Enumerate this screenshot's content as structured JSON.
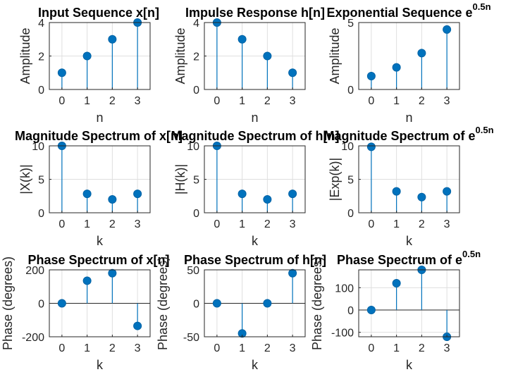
{
  "chart_data": [
    {
      "type": "stem",
      "title": "Input Sequence x[n]",
      "xlabel": "n",
      "ylabel": "Amplitude",
      "x": [
        0,
        1,
        2,
        3
      ],
      "y": [
        1,
        2,
        3,
        4
      ],
      "xlim": [
        -0.5,
        3.5
      ],
      "ylim": [
        0,
        4
      ],
      "yticks": [
        0,
        2,
        4
      ],
      "ytick_labels": [
        "0",
        "2",
        "4"
      ],
      "xtick_labels": [
        "0",
        "1",
        "2",
        "3"
      ],
      "grid": true
    },
    {
      "type": "stem",
      "title": "Impulse Response h[n]",
      "xlabel": "n",
      "ylabel": "Amplitude",
      "x": [
        0,
        1,
        2,
        3
      ],
      "y": [
        4,
        3,
        2,
        1
      ],
      "xlim": [
        -0.5,
        3.5
      ],
      "ylim": [
        0,
        4
      ],
      "yticks": [
        0,
        2,
        4
      ],
      "ytick_labels": [
        "0",
        "2",
        "4"
      ],
      "xtick_labels": [
        "0",
        "1",
        "2",
        "3"
      ],
      "grid": true
    },
    {
      "type": "stem",
      "title": "Exponential Sequence e",
      "title_sup": "0.5n",
      "xlabel": "n",
      "ylabel": "Amplitude",
      "x": [
        0,
        1,
        2,
        3
      ],
      "y": [
        1,
        1.65,
        2.72,
        4.48
      ],
      "xlim": [
        -0.5,
        3.5
      ],
      "ylim": [
        0,
        5
      ],
      "yticks": [
        0,
        5
      ],
      "ytick_labels": [
        "0",
        "5"
      ],
      "xtick_labels": [
        "0",
        "1",
        "2",
        "3"
      ],
      "grid": true
    },
    {
      "type": "stem",
      "title": "Magnitude Spectrum of x[n]",
      "xlabel": "k",
      "ylabel": "|X(k)|",
      "x": [
        0,
        1,
        2,
        3
      ],
      "y": [
        10,
        2.83,
        2,
        2.83
      ],
      "xlim": [
        -0.5,
        3.5
      ],
      "ylim": [
        0,
        10
      ],
      "yticks": [
        0,
        5,
        10
      ],
      "ytick_labels": [
        "0",
        "5",
        "10"
      ],
      "xtick_labels": [
        "0",
        "1",
        "2",
        "3"
      ],
      "grid": true
    },
    {
      "type": "stem",
      "title": "Magnitude Spectrum of h[n]",
      "xlabel": "k",
      "ylabel": "|H(k)|",
      "x": [
        0,
        1,
        2,
        3
      ],
      "y": [
        10,
        2.83,
        2,
        2.83
      ],
      "xlim": [
        -0.5,
        3.5
      ],
      "ylim": [
        0,
        10
      ],
      "yticks": [
        0,
        5,
        10
      ],
      "ytick_labels": [
        "0",
        "5",
        "10"
      ],
      "xtick_labels": [
        "0",
        "1",
        "2",
        "3"
      ],
      "grid": true
    },
    {
      "type": "stem",
      "title": "Magnitude Spectrum of e",
      "title_sup": "0.5n",
      "xlabel": "k",
      "ylabel": "|Exp(k)|",
      "x": [
        0,
        1,
        2,
        3
      ],
      "y": [
        9.85,
        3.2,
        2.34,
        3.2
      ],
      "xlim": [
        -0.5,
        3.5
      ],
      "ylim": [
        0,
        10
      ],
      "yticks": [
        0,
        5,
        10
      ],
      "ytick_labels": [
        "0",
        "5",
        "10"
      ],
      "xtick_labels": [
        "0",
        "1",
        "2",
        "3"
      ],
      "grid": true
    },
    {
      "type": "stem",
      "title": "Phase Spectrum of x[n]",
      "xlabel": "k",
      "ylabel": "Phase (degrees)",
      "x": [
        0,
        1,
        2,
        3
      ],
      "y": [
        0,
        135,
        180,
        -135
      ],
      "xlim": [
        -0.5,
        3.5
      ],
      "ylim": [
        -200,
        200
      ],
      "yticks": [
        -200,
        0,
        200
      ],
      "ytick_labels": [
        "-200",
        "0",
        "200"
      ],
      "xtick_labels": [
        "0",
        "1",
        "2",
        "3"
      ],
      "grid": true
    },
    {
      "type": "stem",
      "title": "Phase Spectrum of h[n]",
      "xlabel": "k",
      "ylabel": "Phase (degrees)",
      "x": [
        0,
        1,
        2,
        3
      ],
      "y": [
        0,
        -45,
        0,
        45
      ],
      "xlim": [
        -0.5,
        3.5
      ],
      "ylim": [
        -50,
        50
      ],
      "yticks": [
        -50,
        0,
        50
      ],
      "ytick_labels": [
        "-50",
        "0",
        "50"
      ],
      "xtick_labels": [
        "0",
        "1",
        "2",
        "3"
      ],
      "grid": true
    },
    {
      "type": "stem",
      "title": "Phase Spectrum of e",
      "title_sup": "0.5n",
      "xlabel": "k",
      "ylabel": "Phase (degrees)",
      "x": [
        0,
        1,
        2,
        3
      ],
      "y": [
        0,
        120,
        180,
        -120
      ],
      "xlim": [
        -0.5,
        3.5
      ],
      "ylim": [
        -120,
        180
      ],
      "yticks": [
        -100,
        0,
        100
      ],
      "ytick_labels": [
        "-100",
        "0",
        "100"
      ],
      "xtick_labels": [
        "0",
        "1",
        "2",
        "3"
      ],
      "grid": true
    }
  ],
  "colors": {
    "stem": "#0072bd",
    "axis": "#262626",
    "grid": "#dfdfdf"
  }
}
